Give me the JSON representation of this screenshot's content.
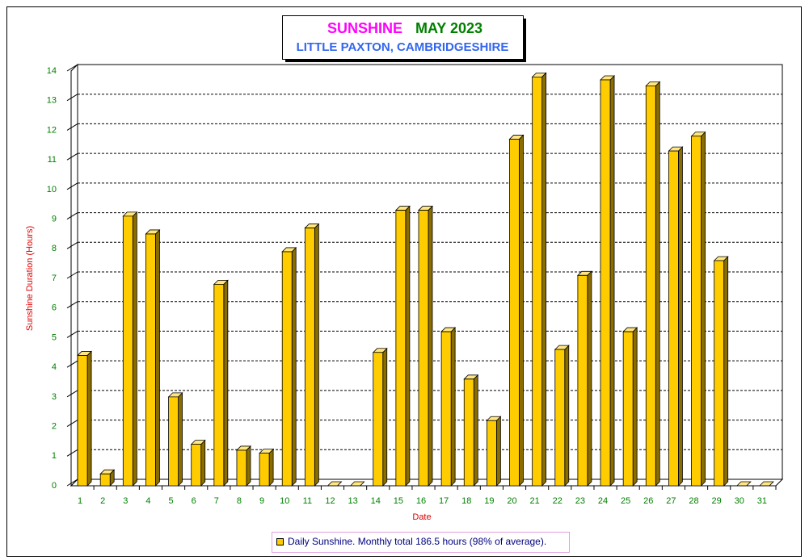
{
  "chart_data": {
    "type": "bar3d",
    "title": [
      "SUNSHINE",
      "MAY 2023"
    ],
    "subtitle": "LITTLE PAXTON, CAMBRIDGESHIRE",
    "y_label": "Sunshine Duration (Hours)",
    "x_label": "Date",
    "categories": [
      "1",
      "2",
      "3",
      "4",
      "5",
      "6",
      "7",
      "8",
      "9",
      "10",
      "11",
      "12",
      "13",
      "14",
      "15",
      "16",
      "17",
      "18",
      "19",
      "20",
      "21",
      "22",
      "23",
      "24",
      "25",
      "26",
      "27",
      "28",
      "29",
      "30",
      "31"
    ],
    "series": [
      {
        "name": "Daily Sunshine. Monthly total 186.5 hours (98% of average).",
        "color": "#ffcc00",
        "values": [
          4.4,
          0.4,
          9.1,
          8.5,
          3.0,
          1.4,
          6.8,
          1.2,
          1.1,
          7.9,
          8.7,
          0,
          0,
          4.5,
          9.3,
          9.3,
          5.2,
          3.6,
          2.2,
          11.7,
          13.8,
          4.6,
          7.1,
          13.7,
          5.2,
          13.5,
          11.3,
          11.8,
          7.6,
          0,
          0
        ]
      }
    ],
    "ylim": [
      0,
      14
    ],
    "yticks": [
      0,
      1,
      2,
      3,
      4,
      5,
      6,
      7,
      8,
      9,
      10,
      11,
      12,
      13,
      14
    ],
    "grid": true
  }
}
